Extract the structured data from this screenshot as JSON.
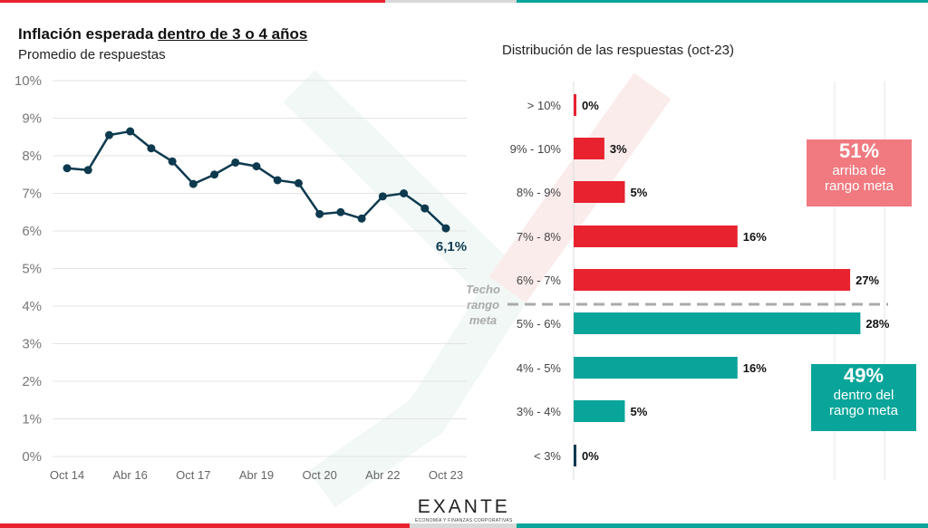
{
  "colors": {
    "red": "#e8222e",
    "teal": "#0aa59a",
    "navy": "#0e3a4f",
    "pink": "#f07a80",
    "grey": "#d8d8d8"
  },
  "header": {
    "title_pre": "Inflación esperada ",
    "title_underlined": "dentro de 3 o 4 años",
    "subtitle": "Promedio de respuestas",
    "right_title": "Distribución de las respuestas  (oct-23)"
  },
  "chart_data": [
    {
      "type": "line",
      "title": "Inflación esperada dentro de 3 o 4 años",
      "subtitle": "Promedio de respuestas",
      "ylim": [
        0,
        10
      ],
      "yticks": [
        "0%",
        "1%",
        "2%",
        "3%",
        "4%",
        "5%",
        "6%",
        "7%",
        "8%",
        "9%",
        "10%"
      ],
      "xticks": [
        "Oct 14",
        "Abr 16",
        "Oct 17",
        "Abr 19",
        "Oct 20",
        "Abr 22",
        "Oct 23"
      ],
      "values": [
        7.67,
        7.62,
        8.55,
        8.65,
        8.2,
        7.85,
        7.25,
        7.5,
        7.82,
        7.72,
        7.35,
        7.27,
        6.45,
        6.5,
        6.33,
        6.92,
        7.0,
        6.6,
        6.07
      ],
      "last_label": "6,1%",
      "grid": true
    },
    {
      "type": "bar",
      "orientation": "horizontal",
      "title": "Distribución de las respuestas  (oct-23)",
      "categories": [
        "> 10%",
        "9% - 10%",
        "8% - 9%",
        "7% - 8%",
        "6% - 7%",
        "5% - 6%",
        "4% - 5%",
        "3% - 4%",
        "< 3%"
      ],
      "values": [
        0,
        3,
        5,
        16,
        27,
        28,
        16,
        5,
        0
      ],
      "labels": [
        "0%",
        "3%",
        "5%",
        "16%",
        "27%",
        "28%",
        "16%",
        "5%",
        "0%"
      ],
      "groups": [
        "red",
        "red",
        "red",
        "red",
        "red",
        "teal",
        "teal",
        "teal",
        "navy"
      ],
      "threshold_label": [
        "Techo",
        "rango",
        "meta"
      ]
    }
  ],
  "boxes": {
    "above": {
      "pct": "51%",
      "line1": "arriba de",
      "line2": "rango meta"
    },
    "within": {
      "pct": "49%",
      "line1": "dentro del",
      "line2": "rango meta"
    }
  },
  "logo": {
    "name": "EXANTE",
    "tagline": "ECONOMÍA Y FINANZAS CORPORATIVAS"
  }
}
